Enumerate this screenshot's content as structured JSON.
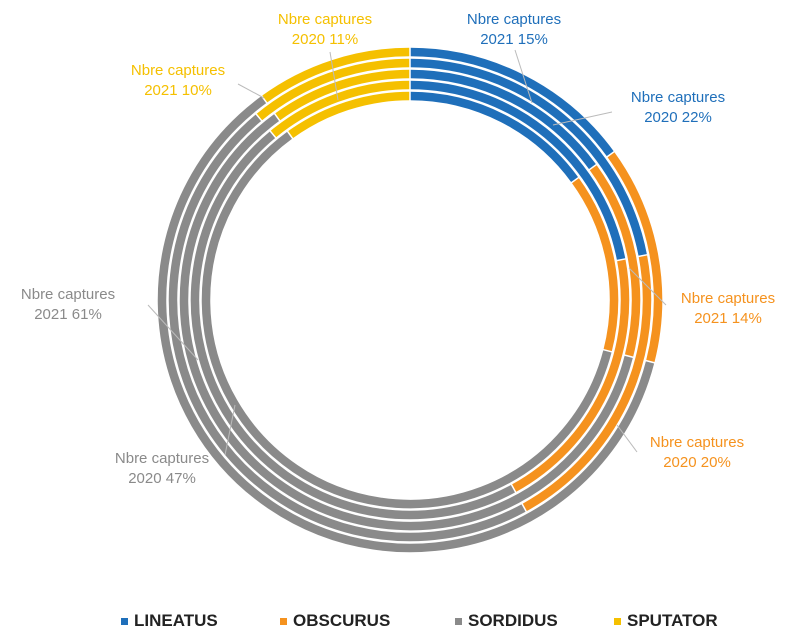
{
  "chart_data": {
    "type": "doughnut",
    "rings": [
      {
        "name": "Nbre captures 2021",
        "values": {
          "LINEATUS": 15,
          "OBSCURUS": 14,
          "SORDIDUS": 61,
          "SPUTATOR": 10
        }
      },
      {
        "name": "Nbre captures 2020",
        "values": {
          "LINEATUS": 22,
          "OBSCURUS": 20,
          "SORDIDUS": 47,
          "SPUTATOR": 11
        }
      },
      {
        "name": "Nbre captures 2021",
        "values": {
          "LINEATUS": 15,
          "OBSCURUS": 14,
          "SORDIDUS": 61,
          "SPUTATOR": 10
        }
      },
      {
        "name": "Nbre captures 2020",
        "values": {
          "LINEATUS": 22,
          "OBSCURUS": 20,
          "SORDIDUS": 47,
          "SPUTATOR": 11
        }
      },
      {
        "name": "Nbre captures 2021",
        "values": {
          "LINEATUS": 15,
          "OBSCURUS": 14,
          "SORDIDUS": 61,
          "SPUTATOR": 10
        }
      }
    ],
    "categories": [
      "LINEATUS",
      "OBSCURUS",
      "SORDIDUS",
      "SPUTATOR"
    ],
    "colors": {
      "LINEATUS": "#1f6fba",
      "OBSCURUS": "#f5921e",
      "SORDIDUS": "#8a8a8a",
      "SPUTATOR": "#f5c000"
    },
    "labels": [
      {
        "line1": "Nbre captures",
        "line2": "2021 15%",
        "category": "LINEATUS"
      },
      {
        "line1": "Nbre captures",
        "line2": "2020 22%",
        "category": "LINEATUS"
      },
      {
        "line1": "Nbre captures",
        "line2": "2021 14%",
        "category": "OBSCURUS"
      },
      {
        "line1": "Nbre captures",
        "line2": "2020 20%",
        "category": "OBSCURUS"
      },
      {
        "line1": "Nbre captures",
        "line2": "2020 47%",
        "category": "SORDIDUS"
      },
      {
        "line1": "Nbre captures",
        "line2": "2021 61%",
        "category": "SORDIDUS"
      },
      {
        "line1": "Nbre captures",
        "line2": "2021 10%",
        "category": "SPUTATOR"
      },
      {
        "line1": "Nbre captures",
        "line2": "2020 11%",
        "category": "SPUTATOR"
      }
    ],
    "legend": {
      "position": "bottom",
      "items": [
        "LINEATUS",
        "OBSCURUS",
        "SORDIDUS",
        "SPUTATOR"
      ]
    }
  }
}
